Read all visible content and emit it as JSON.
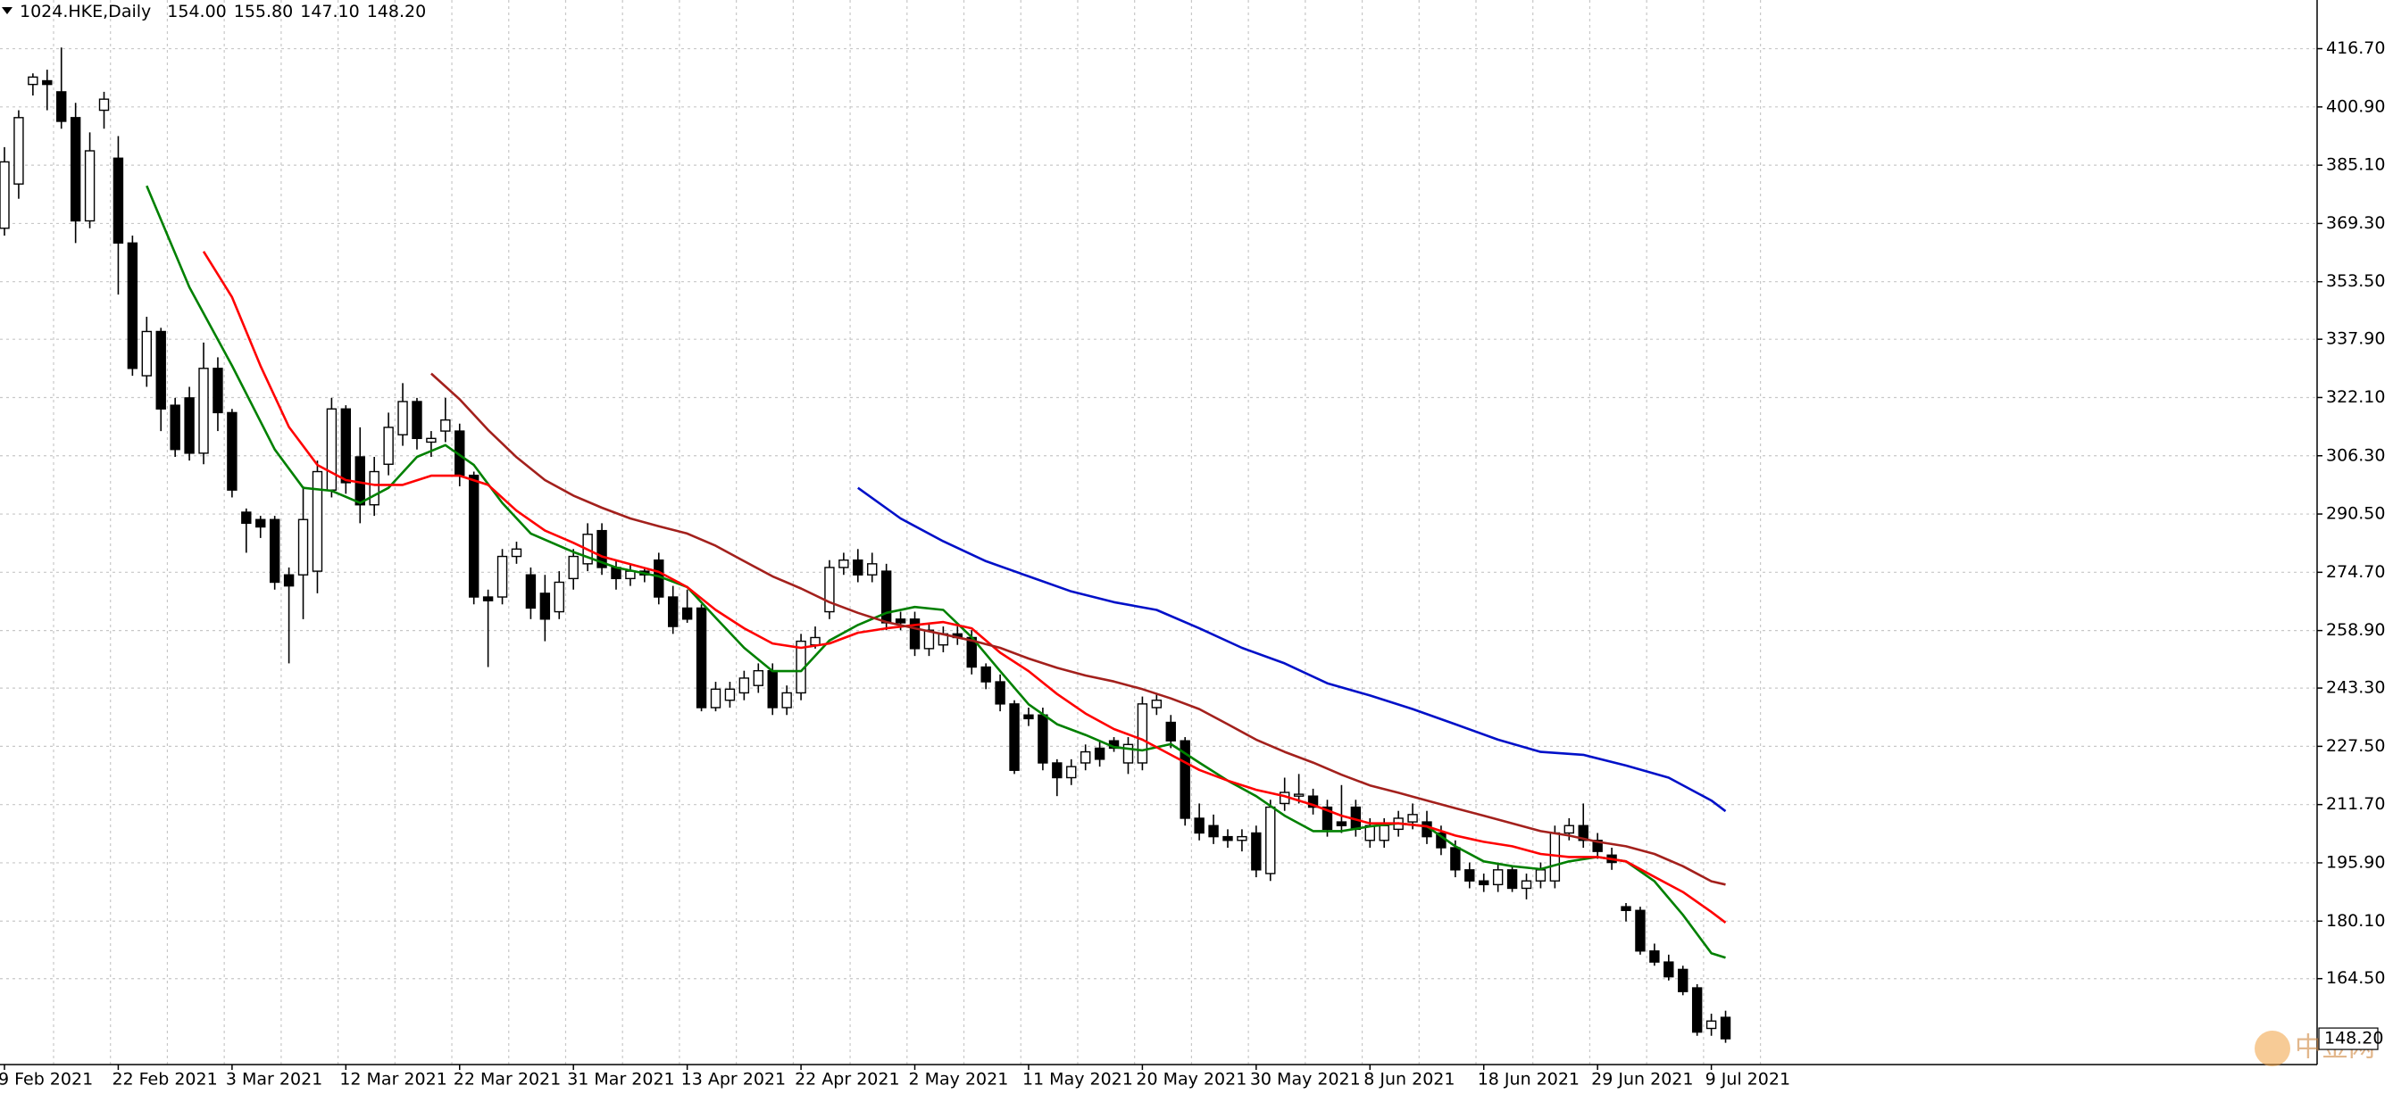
{
  "chart_data": {
    "type": "candlestick",
    "title": "1024.HKE,Daily",
    "header_prices": [
      "154.00",
      "155.80",
      "147.10",
      "148.20"
    ],
    "watermark": "中金网",
    "categories": [
      "9 Feb 2021",
      null,
      null,
      null,
      null,
      null,
      null,
      null,
      "22 Feb 2021",
      null,
      null,
      null,
      null,
      null,
      null,
      null,
      "3 Mar 2021",
      null,
      null,
      null,
      null,
      null,
      null,
      null,
      "12 Mar 2021",
      null,
      null,
      null,
      null,
      null,
      null,
      null,
      "22 Mar 2021",
      null,
      null,
      null,
      null,
      null,
      null,
      null,
      "31 Mar 2021",
      null,
      null,
      null,
      null,
      null,
      null,
      null,
      "13 Apr 2021",
      null,
      null,
      null,
      null,
      null,
      null,
      null,
      "22 Apr 2021",
      null,
      null,
      null,
      null,
      null,
      null,
      null,
      "2 May 2021",
      null,
      null,
      null,
      null,
      null,
      null,
      null,
      "11 May 2021",
      null,
      null,
      null,
      null,
      null,
      null,
      null,
      "20 May 2021",
      null,
      null,
      null,
      null,
      null,
      null,
      null,
      "30 May 2021",
      null,
      null,
      null,
      null,
      null,
      null,
      null,
      "8 Jun 2021",
      null,
      null,
      null,
      null,
      null,
      null,
      null,
      "18 Jun 2021",
      null,
      null,
      null,
      null,
      null,
      null,
      null,
      "29 Jun 2021",
      null,
      null,
      null,
      null,
      null,
      null,
      null,
      "9 Jul 2021",
      null
    ],
    "open": [
      368,
      380,
      407,
      408,
      405,
      398,
      370,
      400,
      387,
      364,
      328,
      340,
      320,
      322,
      307,
      330,
      318,
      291,
      289,
      289,
      274,
      274,
      275,
      297,
      319,
      306,
      293,
      304,
      312,
      321,
      310,
      313,
      313,
      301,
      268,
      268,
      279,
      274,
      269,
      264,
      273,
      277,
      286,
      276,
      273,
      275,
      278,
      268,
      265,
      265,
      238,
      240,
      242,
      244,
      248,
      238,
      242,
      255,
      264,
      276,
      278,
      274,
      275,
      262,
      262,
      254,
      255,
      258,
      257,
      249,
      245,
      239,
      236,
      236,
      223,
      219,
      223,
      227,
      229,
      223,
      223,
      238,
      234,
      229,
      208,
      206,
      203,
      202,
      204,
      193,
      212,
      214,
      214,
      211,
      207,
      211,
      202,
      202,
      205,
      207,
      207,
      204,
      200,
      194,
      191,
      190,
      194,
      189,
      191,
      191,
      204,
      206,
      202,
      198,
      184,
      183,
      172,
      169,
      167,
      162,
      151,
      154
    ],
    "high": [
      390,
      400,
      410,
      411,
      417,
      402,
      394,
      405,
      393,
      366,
      344,
      341,
      322,
      325,
      337,
      333,
      319,
      292,
      290,
      290,
      276,
      298,
      305,
      322,
      320,
      314,
      306,
      318,
      326,
      322,
      313,
      322,
      315,
      302,
      270,
      281,
      283,
      276,
      274,
      275,
      281,
      288,
      288,
      278,
      277,
      276,
      280,
      271,
      270,
      266,
      245,
      245,
      248,
      250,
      250,
      244,
      258,
      260,
      278,
      280,
      281,
      280,
      277,
      264,
      264,
      261,
      260,
      260,
      259,
      250,
      247,
      240,
      238,
      238,
      224,
      224,
      228,
      229,
      230,
      230,
      241,
      242,
      236,
      230,
      212,
      209,
      205,
      205,
      206,
      213,
      219,
      220,
      216,
      213,
      217,
      213,
      208,
      208,
      210,
      212,
      210,
      206,
      202,
      196,
      193,
      196,
      195,
      193,
      196,
      206,
      208,
      212,
      204,
      200,
      185,
      184,
      174,
      171,
      168,
      163,
      155,
      155.8
    ],
    "low": [
      366,
      376,
      404,
      400,
      395,
      364,
      368,
      395,
      350,
      328,
      325,
      313,
      306,
      305,
      304,
      313,
      295,
      280,
      284,
      270,
      250,
      262,
      269,
      295,
      296,
      288,
      290,
      301,
      309,
      308,
      306,
      310,
      298,
      266,
      249,
      266,
      277,
      262,
      256,
      262,
      270,
      275,
      274,
      270,
      271,
      272,
      266,
      258,
      261,
      237,
      237,
      238,
      240,
      242,
      236,
      236,
      240,
      254,
      262,
      274,
      272,
      272,
      259,
      259,
      252,
      252,
      253,
      255,
      247,
      243,
      237,
      220,
      233,
      221,
      214,
      217,
      221,
      222,
      226,
      220,
      221,
      236,
      227,
      206,
      202,
      201,
      200,
      199,
      192,
      191,
      210,
      212,
      209,
      203,
      204,
      203,
      200,
      200,
      203,
      205,
      201,
      198,
      192,
      189,
      188,
      188,
      188,
      186,
      189,
      189,
      202,
      200,
      197,
      194,
      180,
      171,
      168,
      164,
      160,
      149,
      149,
      147.1
    ],
    "close": [
      386,
      398,
      409,
      407,
      397,
      370,
      389,
      403,
      364,
      330,
      340,
      319,
      308,
      307,
      330,
      318,
      297,
      288,
      287,
      272,
      271,
      289,
      302,
      319,
      299,
      293,
      302,
      314,
      321,
      311,
      311,
      316,
      301,
      268,
      267,
      279,
      281,
      265,
      262,
      272,
      279,
      285,
      276,
      273,
      275,
      274,
      268,
      260,
      262,
      238,
      243,
      243,
      246,
      248,
      238,
      242,
      256,
      257,
      276,
      278,
      274,
      277,
      261,
      261,
      254,
      259,
      258,
      257,
      249,
      245,
      239,
      221,
      235,
      223,
      219,
      222,
      226,
      224,
      227,
      228,
      239,
      240,
      229,
      208,
      204,
      203,
      202,
      203,
      194,
      211,
      215,
      214.5,
      211,
      205,
      206,
      205,
      206,
      206,
      208,
      209,
      203,
      200,
      194,
      191,
      190,
      194,
      189,
      191,
      194,
      204,
      206,
      202,
      199,
      196,
      183,
      172,
      169,
      165,
      161,
      150,
      153,
      148.2
    ],
    "bull_color": "#ffffff",
    "bear_color": "#000000",
    "overlays": [
      {
        "color": "#008000",
        "x": [
          10,
          13,
          16,
          19,
          21,
          23,
          25,
          27,
          29,
          31,
          33,
          35,
          37,
          40,
          43,
          46,
          48,
          50,
          52,
          54,
          56,
          58,
          60,
          62,
          64,
          66,
          68,
          70,
          72,
          74,
          76,
          78,
          80,
          82,
          84,
          86,
          88,
          90,
          92,
          94,
          96,
          98,
          100,
          102,
          104,
          106,
          108,
          110,
          112,
          114,
          116,
          118,
          120,
          121
        ],
        "values": [
          379.5,
          352,
          330.7,
          308,
          297.6,
          296.8,
          293.5,
          297.6,
          306,
          309.2,
          303.8,
          293.5,
          285.2,
          280.2,
          276,
          273.6,
          270.7,
          262.4,
          254.2,
          247.9,
          247.9,
          256.2,
          260.4,
          263.7,
          265.3,
          264.5,
          257.1,
          247.9,
          238.9,
          233.5,
          230.6,
          227.3,
          226.4,
          228.1,
          223.1,
          218.2,
          214,
          208.7,
          204.5,
          204.5,
          205.8,
          206.6,
          205.8,
          200.4,
          196.3,
          195,
          194.2,
          196.3,
          197.5,
          196.3,
          190.9,
          181.8,
          171.4,
          170.2
        ]
      },
      {
        "color": "#ff0000",
        "x": [
          14,
          16,
          18,
          20,
          22,
          24,
          26,
          28,
          30,
          32,
          34,
          36,
          38,
          40,
          42,
          44,
          46,
          48,
          50,
          52,
          54,
          56,
          58,
          60,
          62,
          64,
          66,
          68,
          70,
          72,
          74,
          76,
          78,
          80,
          82,
          84,
          86,
          88,
          90,
          92,
          94,
          96,
          98,
          100,
          102,
          104,
          106,
          108,
          110,
          112,
          114,
          116,
          118,
          120,
          121
        ],
        "values": [
          361.7,
          349.3,
          330.7,
          314.1,
          303.8,
          299.7,
          298.4,
          298.4,
          300.9,
          300.9,
          298.4,
          291.4,
          286,
          282.7,
          279,
          276.9,
          274.8,
          270.7,
          264.5,
          259.5,
          255.4,
          254.2,
          255.4,
          258.3,
          259.5,
          260.4,
          261.2,
          259.5,
          252.9,
          247.9,
          241.7,
          236.4,
          232.2,
          229.3,
          225.2,
          221.1,
          218.2,
          215.7,
          214,
          211.6,
          208.7,
          206.6,
          206.6,
          205.8,
          203.3,
          201.6,
          200.4,
          198.3,
          197.5,
          197.5,
          196.3,
          192.1,
          188,
          182.6,
          179.7
        ]
      },
      {
        "color": "#a3201c",
        "x": [
          30,
          32,
          34,
          36,
          38,
          40,
          42,
          44,
          46,
          48,
          50,
          52,
          54,
          56,
          58,
          60,
          62,
          64,
          66,
          68,
          70,
          72,
          74,
          76,
          78,
          80,
          82,
          84,
          86,
          88,
          90,
          92,
          94,
          96,
          98,
          100,
          102,
          104,
          106,
          108,
          110,
          112,
          114,
          116,
          118,
          120,
          121
        ],
        "values": [
          328.6,
          321.6,
          313.3,
          305.9,
          299.7,
          295.5,
          292.2,
          289.3,
          287.2,
          285.2,
          281.9,
          277.7,
          273.6,
          270.3,
          266.6,
          263.7,
          261.2,
          259.5,
          257.9,
          256.2,
          254.2,
          251.3,
          248.8,
          246.7,
          245.1,
          243,
          240.5,
          237.6,
          233.5,
          229.3,
          226,
          223.1,
          219.8,
          216.9,
          214.9,
          212.8,
          210.7,
          208.7,
          206.6,
          204.5,
          203.3,
          201.6,
          200.4,
          198.3,
          195,
          190.9,
          190
        ]
      },
      {
        "color": "#0010c8",
        "x": [
          60,
          63,
          66,
          69,
          72,
          75,
          78,
          81,
          84,
          87,
          90,
          93,
          96,
          99,
          102,
          105,
          108,
          111,
          114,
          117,
          120,
          121
        ],
        "values": [
          297.6,
          289.3,
          283.1,
          277.7,
          273.6,
          269.5,
          266.6,
          264.5,
          259.5,
          254.2,
          250,
          244.6,
          241.3,
          237.6,
          233.5,
          229.3,
          226,
          225.2,
          222.3,
          219,
          212.8,
          209.9
        ]
      }
    ],
    "last_price": {
      "value": 148.2,
      "label": "148.20"
    },
    "ylim": [
      141.2,
      429.9
    ],
    "yticks": [
      {
        "value": 416.7,
        "label": "416.70"
      },
      {
        "value": 400.9,
        "label": "400.90"
      },
      {
        "value": 385.1,
        "label": "385.10"
      },
      {
        "value": 369.3,
        "label": "369.30"
      },
      {
        "value": 353.5,
        "label": "353.50"
      },
      {
        "value": 337.9,
        "label": "337.90"
      },
      {
        "value": 322.1,
        "label": "322.10"
      },
      {
        "value": 306.3,
        "label": "306.30"
      },
      {
        "value": 290.5,
        "label": "290.50"
      },
      {
        "value": 274.7,
        "label": "274.70"
      },
      {
        "value": 258.9,
        "label": "258.90"
      },
      {
        "value": 243.3,
        "label": "243.30"
      },
      {
        "value": 227.5,
        "label": "227.50"
      },
      {
        "value": 211.7,
        "label": "211.70"
      },
      {
        "value": 195.9,
        "label": "195.90"
      },
      {
        "value": 180.1,
        "label": "180.10"
      },
      {
        "value": 164.5,
        "label": "164.50"
      }
    ],
    "grid": true
  }
}
